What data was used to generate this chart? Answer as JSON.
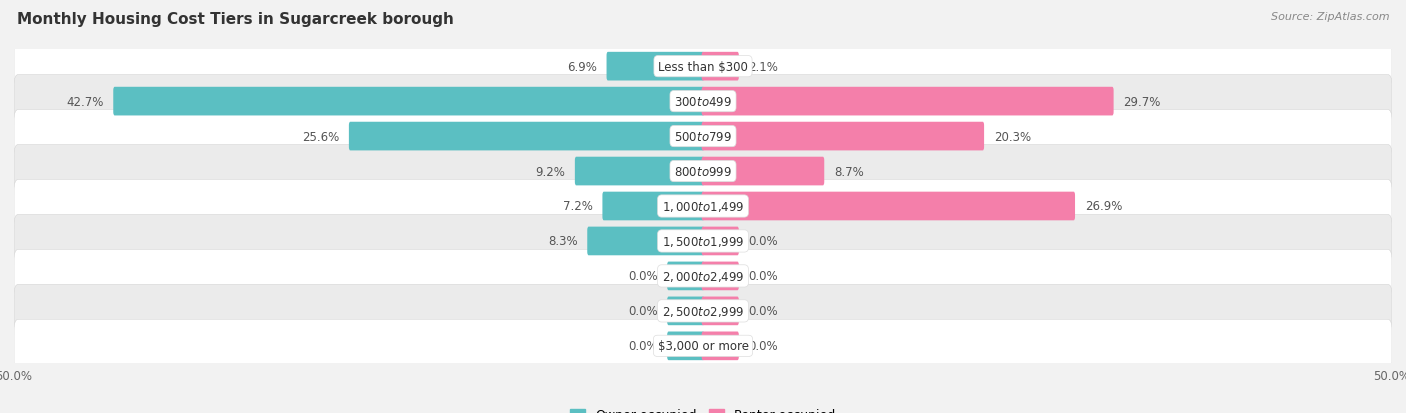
{
  "title": "Monthly Housing Cost Tiers in Sugarcreek borough",
  "source": "Source: ZipAtlas.com",
  "categories": [
    "Less than $300",
    "$300 to $499",
    "$500 to $799",
    "$800 to $999",
    "$1,000 to $1,499",
    "$1,500 to $1,999",
    "$2,000 to $2,499",
    "$2,500 to $2,999",
    "$3,000 or more"
  ],
  "owner_values": [
    6.9,
    42.7,
    25.6,
    9.2,
    7.2,
    8.3,
    0.0,
    0.0,
    0.0
  ],
  "renter_values": [
    2.1,
    29.7,
    20.3,
    8.7,
    26.9,
    0.0,
    0.0,
    0.0,
    0.0
  ],
  "owner_color": "#5bbfc2",
  "renter_color": "#f47faa",
  "renter_color_light": "#f9b8cf",
  "axis_max": 50.0,
  "bg_color": "#f2f2f2",
  "row_colors": [
    "#ffffff",
    "#ebebeb"
  ],
  "min_bar_val": 2.5,
  "label_fontsize": 8.5,
  "cat_fontsize": 8.5,
  "title_fontsize": 11,
  "source_fontsize": 8
}
